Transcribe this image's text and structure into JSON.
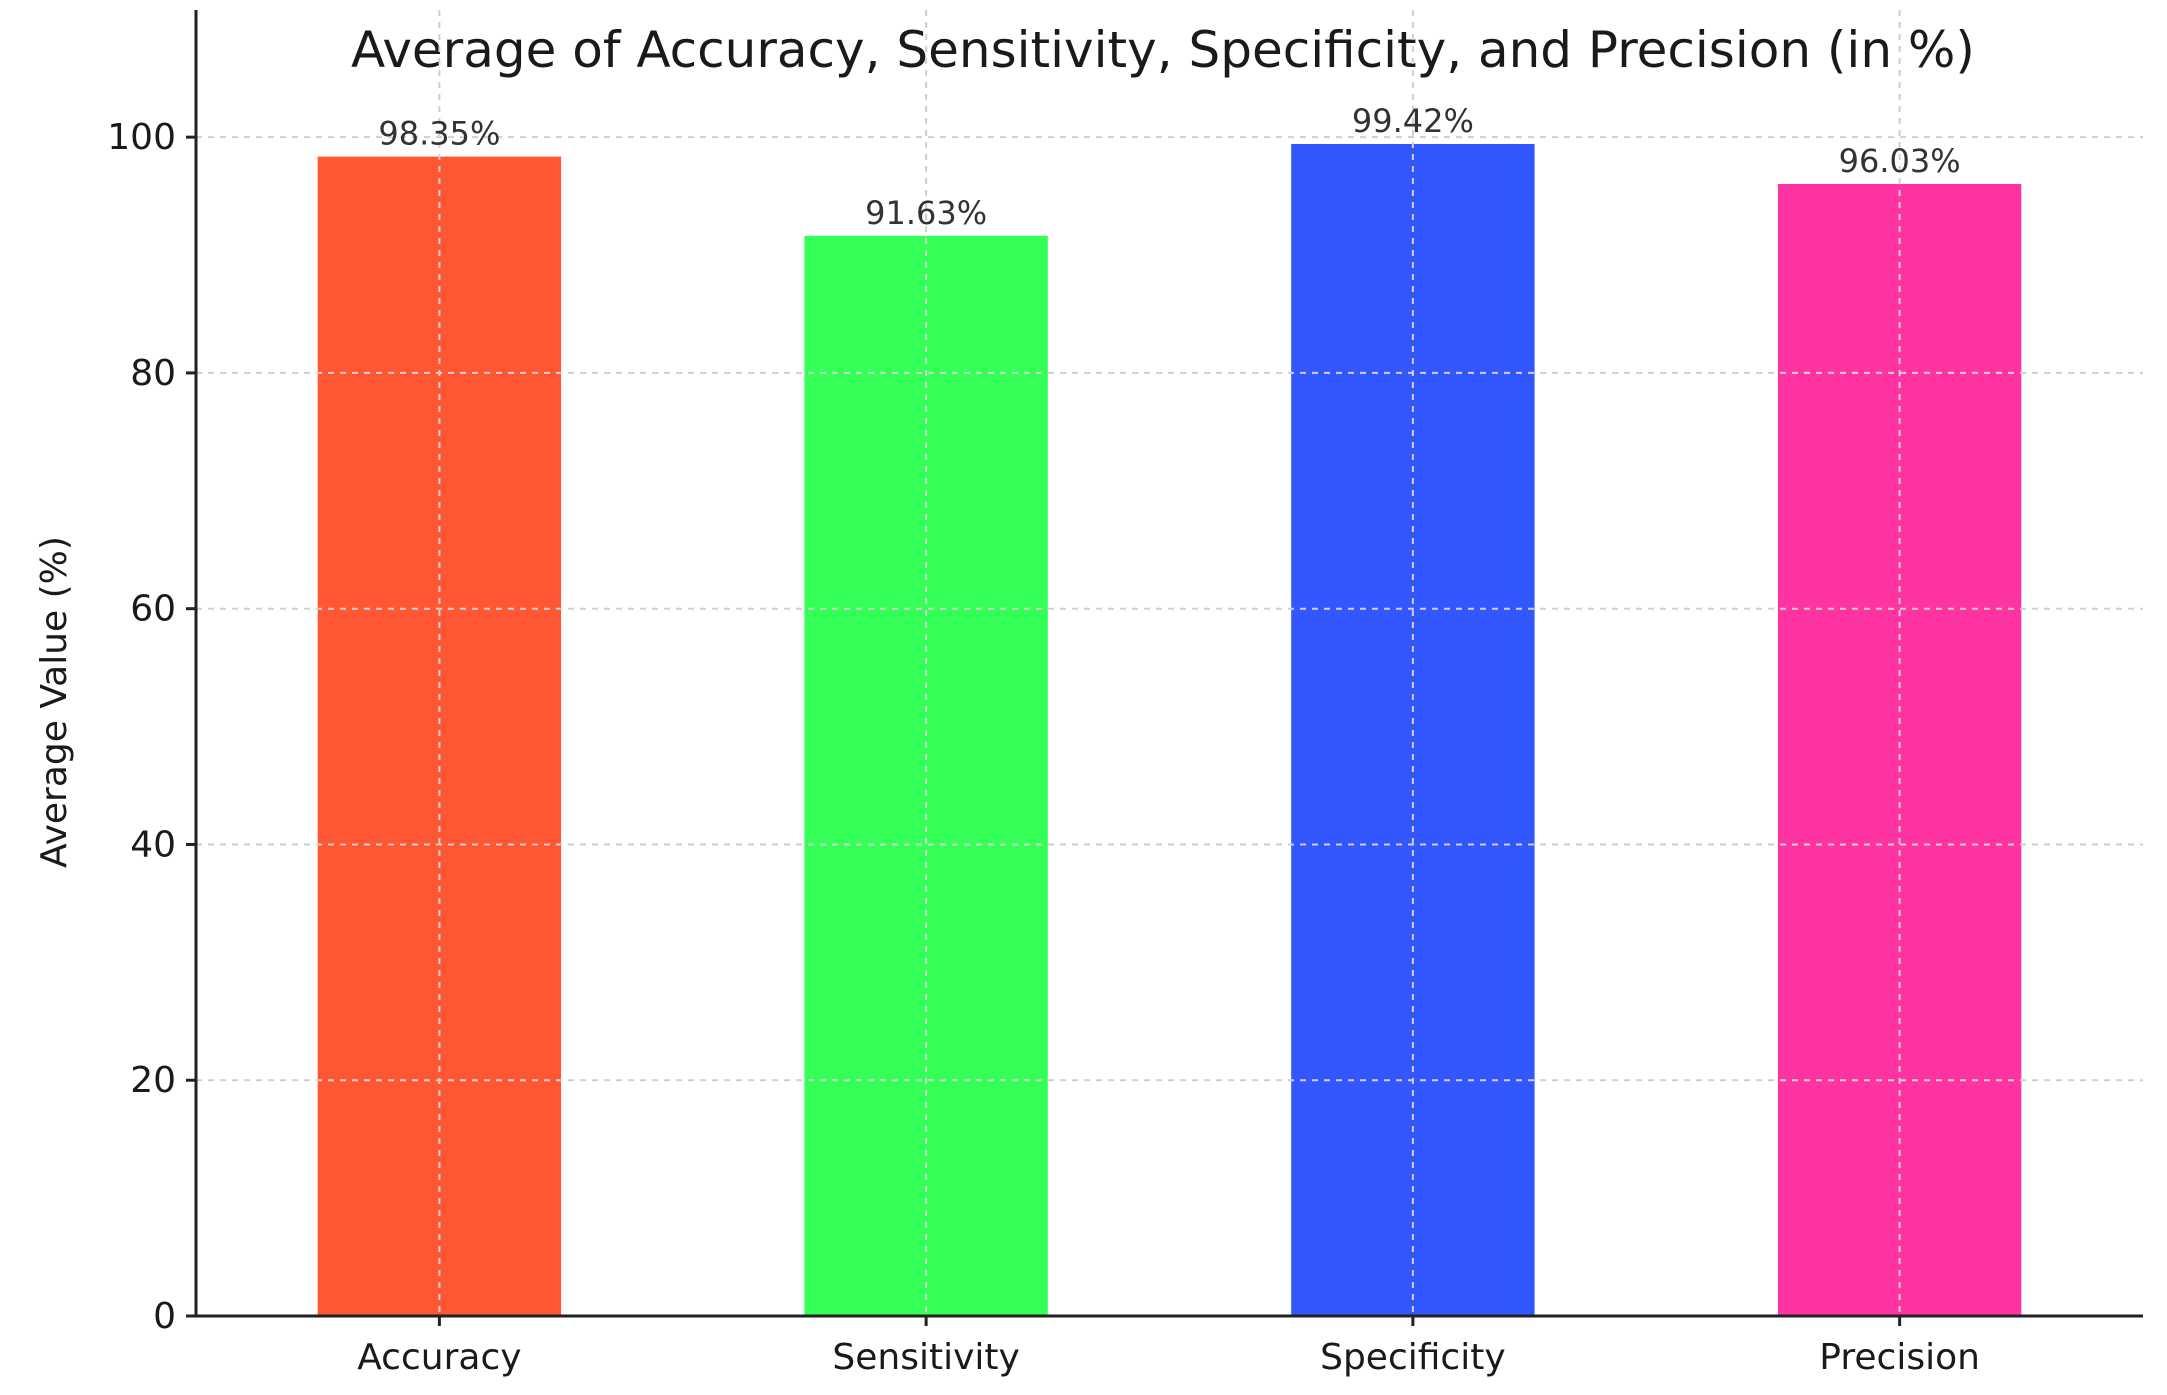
{
  "chart_data": {
    "type": "bar",
    "title": "Average of Accuracy, Sensitivity, Specificity, and Precision (in %)",
    "xlabel": "",
    "ylabel": "Average Value (%)",
    "categories": [
      "Accuracy",
      "Sensitivity",
      "Specificity",
      "Precision"
    ],
    "values": [
      98.35,
      91.63,
      99.42,
      96.03
    ],
    "value_labels": [
      "98.35%",
      "91.63%",
      "99.42%",
      "96.03%"
    ],
    "colors": [
      "#ff5733",
      "#33ff57",
      "#3357ff",
      "#ff33a1"
    ],
    "ylim": [
      0,
      104
    ],
    "yticks": [
      0,
      20,
      40,
      60,
      80,
      100
    ],
    "grid": true,
    "legend": "none"
  }
}
